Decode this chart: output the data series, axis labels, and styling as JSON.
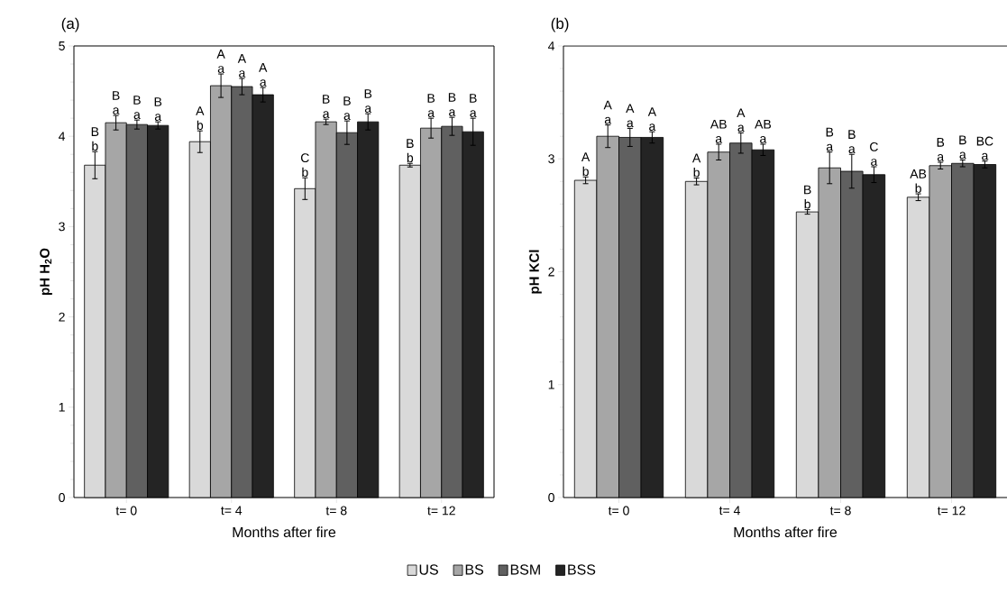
{
  "chart_data": [
    {
      "type": "bar",
      "title": "(a)",
      "xlabel": "Months after fire",
      "ylabel": "pH H$_{2}$O",
      "categories": [
        "t= 0",
        "t= 4",
        "t= 8",
        "t= 12"
      ],
      "ylim": [
        0,
        5
      ],
      "yticks": [
        0,
        1,
        2,
        3,
        4,
        5
      ],
      "legend": "bottom",
      "series": [
        {
          "name": "US",
          "color": "#d9d9d9",
          "values": [
            3.68,
            3.94,
            3.42,
            3.68
          ],
          "errors": [
            0.15,
            0.12,
            0.12,
            0.02
          ],
          "value_labels": [
            [
              "B",
              "b"
            ],
            [
              "A",
              "b"
            ],
            [
              "C",
              "b"
            ],
            [
              "B",
              "b"
            ]
          ]
        },
        {
          "name": "BS",
          "color": "#a6a6a6",
          "values": [
            4.15,
            4.56,
            4.16,
            4.09
          ],
          "errors": [
            0.08,
            0.13,
            0.03,
            0.11
          ],
          "value_labels": [
            [
              "B",
              "a"
            ],
            [
              "A",
              "a"
            ],
            [
              "B",
              "a"
            ],
            [
              "B",
              "a"
            ]
          ]
        },
        {
          "name": "BSM",
          "color": "#606060",
          "values": [
            4.13,
            4.55,
            4.04,
            4.11
          ],
          "errors": [
            0.05,
            0.09,
            0.13,
            0.1
          ],
          "value_labels": [
            [
              "B",
              "a"
            ],
            [
              "A",
              "a"
            ],
            [
              "B",
              "a"
            ],
            [
              "B",
              "a"
            ]
          ]
        },
        {
          "name": "BSS",
          "color": "#242424",
          "values": [
            4.12,
            4.46,
            4.16,
            4.05
          ],
          "errors": [
            0.04,
            0.08,
            0.09,
            0.15
          ],
          "value_labels": [
            [
              "B",
              "a"
            ],
            [
              "A",
              "a"
            ],
            [
              "B",
              "a"
            ],
            [
              "B",
              "a"
            ]
          ]
        }
      ]
    },
    {
      "type": "bar",
      "title": "(b)",
      "xlabel": "Months after fire",
      "ylabel": "pH KCl",
      "categories": [
        "t= 0",
        "t= 4",
        "t= 8",
        "t= 12"
      ],
      "ylim": [
        0,
        4
      ],
      "yticks": [
        0,
        1,
        2,
        3,
        4
      ],
      "series": [
        {
          "color": "#d9d9d9",
          "values": [
            2.81,
            2.8,
            2.53,
            2.66
          ],
          "errors": [
            0.03,
            0.03,
            0.02,
            0.03
          ],
          "value_labels": [
            [
              "A",
              "b"
            ],
            [
              "A",
              "b"
            ],
            [
              "B",
              "b"
            ],
            [
              "AB",
              "b"
            ]
          ]
        },
        {
          "color": "#a6a6a6",
          "values": [
            3.2,
            3.06,
            2.92,
            2.94
          ],
          "errors": [
            0.1,
            0.07,
            0.14,
            0.03
          ],
          "value_labels": [
            [
              "A",
              "a"
            ],
            [
              "AB",
              "a"
            ],
            [
              "B",
              "a"
            ],
            [
              "B",
              "a"
            ]
          ]
        },
        {
          "color": "#606060",
          "values": [
            3.19,
            3.14,
            2.89,
            2.96
          ],
          "errors": [
            0.08,
            0.09,
            0.15,
            0.03
          ],
          "value_labels": [
            [
              "A",
              "a"
            ],
            [
              "A",
              "a"
            ],
            [
              "B",
              "a"
            ],
            [
              "B",
              "a"
            ]
          ]
        },
        {
          "color": "#242424",
          "values": [
            3.19,
            3.08,
            2.86,
            2.95
          ],
          "errors": [
            0.05,
            0.05,
            0.07,
            0.03
          ],
          "value_labels": [
            [
              "A",
              "a"
            ],
            [
              "AB",
              "a"
            ],
            [
              "C",
              "a"
            ],
            [
              "BC",
              "a"
            ]
          ]
        }
      ]
    }
  ]
}
